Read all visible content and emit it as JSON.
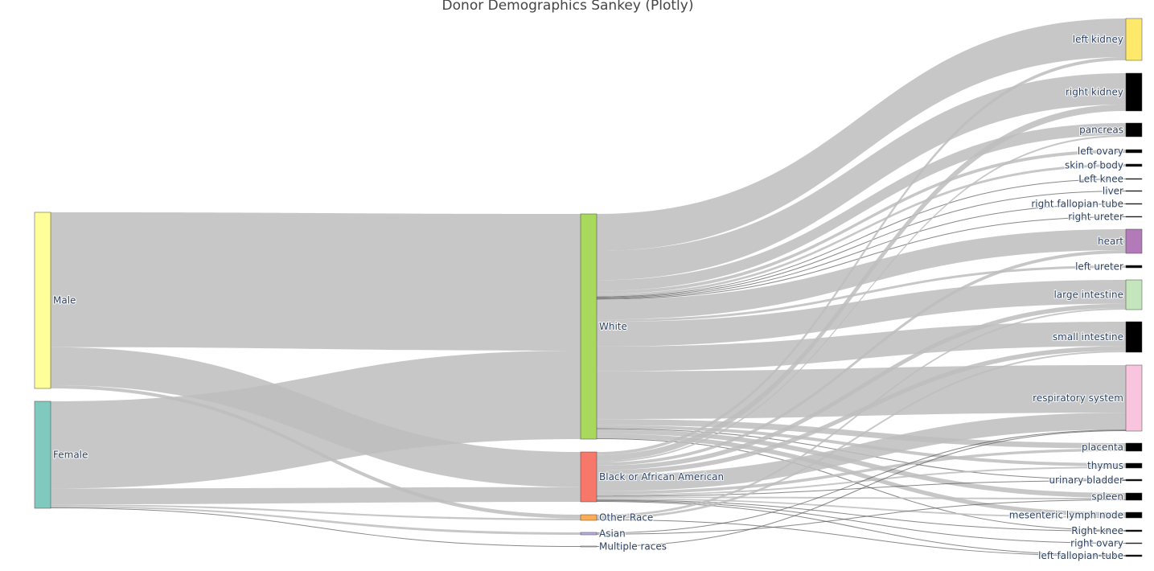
{
  "chart_data": {
    "type": "sankey",
    "title": "Donor Demographics Sankey (Plotly)",
    "nodes": [
      {
        "id": "male",
        "label": "Male",
        "color": "#ffff99"
      },
      {
        "id": "female",
        "label": "Female",
        "color": "#7fc9bf"
      },
      {
        "id": "white",
        "label": "White",
        "color": "#a8d95c"
      },
      {
        "id": "black",
        "label": "Black or African American",
        "color": "#f8776b"
      },
      {
        "id": "other",
        "label": "Other Race",
        "color": "#fdac54"
      },
      {
        "id": "asian",
        "label": "Asian",
        "color": "#b9aee0"
      },
      {
        "id": "multi",
        "label": "Multiple races",
        "color": "#d9d9d9"
      },
      {
        "id": "lkidney",
        "label": "left kidney",
        "color": "#ffe96b"
      },
      {
        "id": "rkidney",
        "label": "right kidney",
        "color": "#000000"
      },
      {
        "id": "pancreas",
        "label": "pancreas",
        "color": "#000000"
      },
      {
        "id": "lovary",
        "label": "left ovary",
        "color": "#000000"
      },
      {
        "id": "skin",
        "label": "skin of body",
        "color": "#000000"
      },
      {
        "id": "lknee",
        "label": "Left knee",
        "color": "#000000"
      },
      {
        "id": "liver",
        "label": "liver",
        "color": "#000000"
      },
      {
        "id": "rfallopian",
        "label": "right fallopian tube",
        "color": "#000000"
      },
      {
        "id": "rureter",
        "label": "right ureter",
        "color": "#000000"
      },
      {
        "id": "heart",
        "label": "heart",
        "color": "#b27ab9"
      },
      {
        "id": "lureter",
        "label": "left ureter",
        "color": "#000000"
      },
      {
        "id": "lintestine",
        "label": "large intestine",
        "color": "#c5e6bc"
      },
      {
        "id": "sintestine",
        "label": "small intestine",
        "color": "#000000"
      },
      {
        "id": "resp",
        "label": "respiratory system",
        "color": "#f9c4de"
      },
      {
        "id": "placenta",
        "label": "placenta",
        "color": "#000000"
      },
      {
        "id": "thymus",
        "label": "thymus",
        "color": "#000000"
      },
      {
        "id": "bladder",
        "label": "urinary bladder",
        "color": "#000000"
      },
      {
        "id": "spleen",
        "label": "spleen",
        "color": "#000000"
      },
      {
        "id": "mesenteric",
        "label": "mesenteric lymph node",
        "color": "#000000"
      },
      {
        "id": "rknee",
        "label": "Right knee",
        "color": "#000000"
      },
      {
        "id": "rovary",
        "label": "right ovary",
        "color": "#000000"
      },
      {
        "id": "lfallopian",
        "label": "left fallopian tube",
        "color": "#000000"
      }
    ],
    "links": [
      {
        "source": "male",
        "target": "white",
        "value": 85
      },
      {
        "source": "male",
        "target": "black",
        "value": 24
      },
      {
        "source": "male",
        "target": "other",
        "value": 2
      },
      {
        "source": "female",
        "target": "white",
        "value": 55
      },
      {
        "source": "female",
        "target": "black",
        "value": 10
      },
      {
        "source": "female",
        "target": "other",
        "value": 1
      },
      {
        "source": "female",
        "target": "asian",
        "value": 1
      },
      {
        "source": "female",
        "target": "multi",
        "value": 0.5
      },
      {
        "source": "white",
        "target": "lkidney",
        "value": 24
      },
      {
        "source": "white",
        "target": "rkidney",
        "value": 19
      },
      {
        "source": "white",
        "target": "pancreas",
        "value": 7
      },
      {
        "source": "white",
        "target": "lovary",
        "value": 2
      },
      {
        "source": "white",
        "target": "skin",
        "value": 1.5
      },
      {
        "source": "white",
        "target": "lknee",
        "value": 0.5
      },
      {
        "source": "white",
        "target": "liver",
        "value": 0.5
      },
      {
        "source": "white",
        "target": "rfallopian",
        "value": 0.5
      },
      {
        "source": "white",
        "target": "rureter",
        "value": 0.5
      },
      {
        "source": "white",
        "target": "heart",
        "value": 13
      },
      {
        "source": "white",
        "target": "lureter",
        "value": 1.5
      },
      {
        "source": "white",
        "target": "lintestine",
        "value": 16
      },
      {
        "source": "white",
        "target": "sintestine",
        "value": 16
      },
      {
        "source": "white",
        "target": "resp",
        "value": 31
      },
      {
        "source": "white",
        "target": "placenta",
        "value": 4
      },
      {
        "source": "white",
        "target": "thymus",
        "value": 2
      },
      {
        "source": "white",
        "target": "bladder",
        "value": 0.5
      },
      {
        "source": "white",
        "target": "spleen",
        "value": 3
      },
      {
        "source": "white",
        "target": "mesenteric",
        "value": 3
      },
      {
        "source": "white",
        "target": "rknee",
        "value": 0.5
      },
      {
        "source": "black",
        "target": "lkidney",
        "value": 2
      },
      {
        "source": "black",
        "target": "rkidney",
        "value": 4
      },
      {
        "source": "black",
        "target": "pancreas",
        "value": 1
      },
      {
        "source": "black",
        "target": "heart",
        "value": 2
      },
      {
        "source": "black",
        "target": "lintestine",
        "value": 3
      },
      {
        "source": "black",
        "target": "sintestine",
        "value": 3
      },
      {
        "source": "black",
        "target": "resp",
        "value": 11
      },
      {
        "source": "black",
        "target": "placenta",
        "value": 2
      },
      {
        "source": "black",
        "target": "thymus",
        "value": 1
      },
      {
        "source": "black",
        "target": "bladder",
        "value": 0.5
      },
      {
        "source": "black",
        "target": "spleen",
        "value": 1
      },
      {
        "source": "black",
        "target": "mesenteric",
        "value": 1
      },
      {
        "source": "black",
        "target": "rknee",
        "value": 0.5
      },
      {
        "source": "black",
        "target": "rovary",
        "value": 0.5
      },
      {
        "source": "black",
        "target": "lfallopian",
        "value": 0.5
      },
      {
        "source": "other",
        "target": "sintestine",
        "value": 1
      },
      {
        "source": "other",
        "target": "lintestine",
        "value": 1
      },
      {
        "source": "other",
        "target": "lfallopian",
        "value": 0.5
      },
      {
        "source": "asian",
        "target": "resp",
        "value": 0.5
      },
      {
        "source": "asian",
        "target": "spleen",
        "value": 0.5
      },
      {
        "source": "multi",
        "target": "resp",
        "value": 0.5
      }
    ]
  }
}
